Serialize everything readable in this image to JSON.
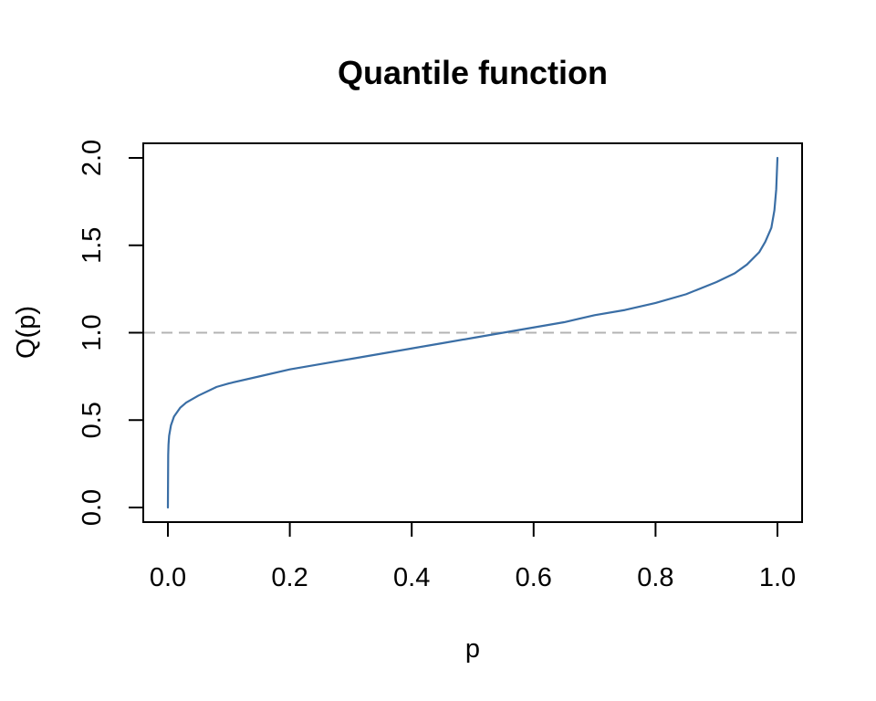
{
  "chart_data": {
    "type": "line",
    "title": "Quantile function",
    "xlabel": "p",
    "ylabel": "Q(p)",
    "xlim": [
      0,
      1
    ],
    "ylim": [
      0,
      2
    ],
    "x_ticks": [
      "0.0",
      "0.2",
      "0.4",
      "0.6",
      "0.8",
      "1.0"
    ],
    "y_ticks": [
      "0.0",
      "0.5",
      "1.0",
      "1.5",
      "2.0"
    ],
    "grid": false,
    "legend": "none",
    "reference_line": {
      "y": 1.0,
      "style": "dashed",
      "color": "#b3b3b3"
    },
    "series": [
      {
        "color": "#3a6ea5",
        "x": [
          0,
          0.0005,
          0.001,
          0.002,
          0.005,
          0.01,
          0.02,
          0.03,
          0.05,
          0.08,
          0.1,
          0.15,
          0.2,
          0.25,
          0.3,
          0.35,
          0.4,
          0.45,
          0.5,
          0.55,
          0.6,
          0.65,
          0.7,
          0.75,
          0.8,
          0.85,
          0.9,
          0.93,
          0.95,
          0.97,
          0.98,
          0.99,
          0.995,
          0.998,
          1.0
        ],
        "values": [
          0.0,
          0.3,
          0.36,
          0.41,
          0.47,
          0.52,
          0.57,
          0.6,
          0.64,
          0.69,
          0.71,
          0.75,
          0.79,
          0.82,
          0.85,
          0.88,
          0.91,
          0.94,
          0.97,
          1.0,
          1.03,
          1.06,
          1.1,
          1.13,
          1.17,
          1.22,
          1.29,
          1.34,
          1.39,
          1.46,
          1.52,
          1.6,
          1.7,
          1.82,
          2.0
        ]
      }
    ]
  }
}
